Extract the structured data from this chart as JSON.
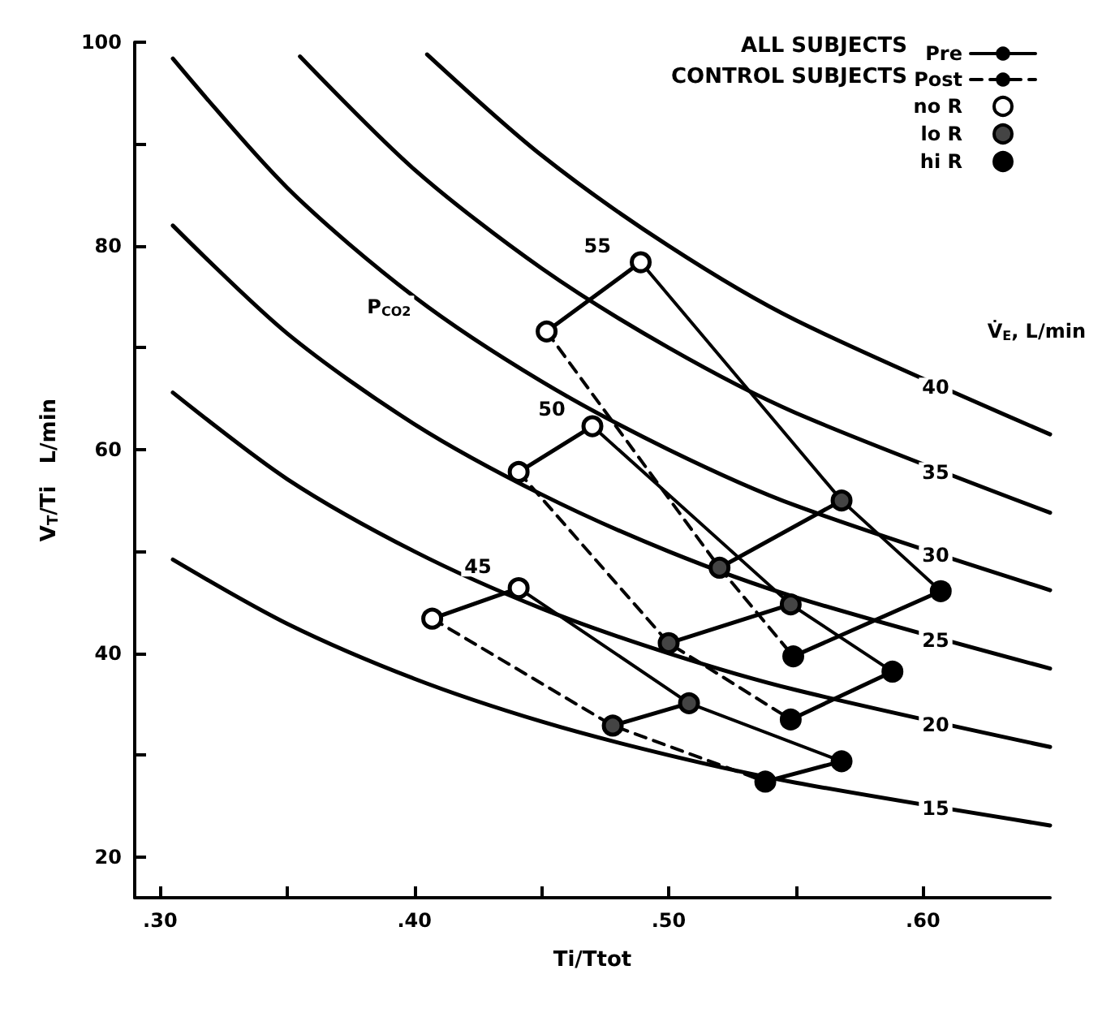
{
  "chart_data": {
    "type": "line",
    "xlabel": "Ti/Ttot",
    "ylabel": "V$_{T}$/Ti   L/min",
    "xlim": [
      0.29,
      0.65
    ],
    "ylim": [
      16,
      100
    ],
    "xticks": [
      {
        "value": 0.3,
        "label": ".30"
      },
      {
        "value": 0.35,
        "label": null
      },
      {
        "value": 0.4,
        "label": ".40"
      },
      {
        "value": 0.45,
        "label": null
      },
      {
        "value": 0.5,
        "label": ".50"
      },
      {
        "value": 0.55,
        "label": null
      },
      {
        "value": 0.6,
        "label": ".60"
      }
    ],
    "yticks": [
      20,
      {
        "value": 30,
        "label": null
      },
      40,
      {
        "value": 50,
        "label": null
      },
      60,
      {
        "value": 70,
        "label": null
      },
      80,
      {
        "value": 90,
        "label": null
      },
      100
    ],
    "grid": false,
    "legend": "top right",
    "series": [
      {
        "color": "#000000",
        "line_style": "solid",
        "x": [
          0.305,
          0.35,
          0.4,
          0.45,
          0.5,
          0.55,
          0.65
        ],
        "values": [
          49.2,
          42.9,
          37.5,
          33.3,
          30.0,
          27.3,
          23.1
        ]
      },
      {
        "color": "#000000",
        "line_style": "solid",
        "x": [
          0.305,
          0.35,
          0.4,
          0.45,
          0.5,
          0.55,
          0.65
        ],
        "values": [
          65.6,
          57.1,
          50.0,
          44.4,
          40.0,
          36.4,
          30.8
        ]
      },
      {
        "color": "#000000",
        "line_style": "solid",
        "x": [
          0.305,
          0.35,
          0.4,
          0.45,
          0.5,
          0.55,
          0.65
        ],
        "values": [
          82.0,
          71.4,
          62.5,
          55.6,
          50.0,
          45.5,
          38.5
        ]
      },
      {
        "color": "#000000",
        "line_style": "solid",
        "x": [
          0.305,
          0.35,
          0.4,
          0.45,
          0.5,
          0.55,
          0.65
        ],
        "values": [
          98.4,
          85.7,
          75.0,
          66.7,
          60.0,
          54.5,
          46.2
        ]
      },
      {
        "color": "#000000",
        "line_style": "solid",
        "x": [
          0.355,
          0.4,
          0.45,
          0.5,
          0.55,
          0.65
        ],
        "values": [
          98.6,
          87.5,
          77.8,
          70.0,
          63.6,
          53.8
        ]
      },
      {
        "color": "#000000",
        "line_style": "solid",
        "x": [
          0.405,
          0.45,
          0.5,
          0.55,
          0.65
        ],
        "values": [
          98.8,
          88.9,
          80.0,
          72.7,
          61.5
        ]
      },
      {
        "color": "#000000",
        "line_style": "solid",
        "x": [
          0.489,
          0.452
        ],
        "values": [
          78.4,
          71.6
        ]
      },
      {
        "color": "#000000",
        "line_style": "solid",
        "x": [
          0.568,
          0.52
        ],
        "values": [
          55.0,
          48.4
        ]
      },
      {
        "color": "#000000",
        "line_style": "solid",
        "x": [
          0.607,
          0.549
        ],
        "values": [
          46.1,
          39.7
        ]
      },
      {
        "color": "#000000",
        "line_style": "solid",
        "x": [
          0.47,
          0.441
        ],
        "values": [
          62.3,
          57.8
        ]
      },
      {
        "color": "#000000",
        "line_style": "solid",
        "x": [
          0.548,
          0.5
        ],
        "values": [
          44.8,
          41.0
        ]
      },
      {
        "color": "#000000",
        "line_style": "solid",
        "x": [
          0.588,
          0.548
        ],
        "values": [
          38.2,
          33.5
        ]
      },
      {
        "color": "#000000",
        "line_style": "solid",
        "x": [
          0.441,
          0.407
        ],
        "values": [
          46.4,
          43.4
        ]
      },
      {
        "color": "#000000",
        "line_style": "solid",
        "x": [
          0.508,
          0.478
        ],
        "values": [
          35.1,
          32.9
        ]
      },
      {
        "color": "#000000",
        "line_style": "solid",
        "x": [
          0.568,
          0.538
        ],
        "values": [
          29.4,
          27.4
        ]
      },
      {
        "name": "Pre",
        "color": "#000000",
        "line_style": "solid",
        "x": [
          0.489,
          0.568,
          0.607,
          null,
          0.47,
          0.548,
          0.588,
          null,
          0.441,
          0.508,
          0.568
        ],
        "values": [
          78.4,
          55.0,
          46.1,
          null,
          62.3,
          44.8,
          38.2,
          null,
          46.4,
          35.1,
          29.4
        ]
      },
      {
        "name": "Post",
        "color": "#000000",
        "line_style": "dashed",
        "x": [
          0.452,
          0.52,
          0.549,
          null,
          0.441,
          0.5,
          0.548,
          null,
          0.407,
          0.478,
          0.538
        ],
        "values": [
          71.6,
          48.4,
          39.7,
          null,
          57.8,
          41.0,
          33.5,
          null,
          43.4,
          32.9,
          27.4
        ]
      },
      {
        "name": "no R",
        "type": "scatter",
        "color": "#ffffff",
        "marker": "circle",
        "x": [
          0.489,
          0.452,
          0.47,
          0.441,
          0.441,
          0.407
        ],
        "values": [
          78.4,
          71.6,
          62.3,
          57.8,
          46.4,
          43.4
        ]
      },
      {
        "name": "lo R",
        "type": "scatter",
        "color": "#444444",
        "marker": "circle",
        "x": [
          0.568,
          0.52,
          0.548,
          0.5,
          0.508,
          0.478
        ],
        "values": [
          55.0,
          48.4,
          44.8,
          41.0,
          35.1,
          32.9
        ]
      },
      {
        "name": "hi R",
        "type": "scatter",
        "color": "#000000",
        "marker": "circle",
        "x": [
          0.607,
          0.549,
          0.588,
          0.548,
          0.568,
          0.538
        ],
        "values": [
          46.1,
          39.7,
          38.2,
          33.5,
          29.4,
          27.4
        ]
      }
    ],
    "annotations": [
      "ALL SUBJECTS",
      "CONTROL SUBJECTS",
      {
        "text": "15",
        "x": 0.605,
        "y": 24.8
      },
      {
        "text": "20",
        "x": 0.605,
        "y": 33.0
      },
      {
        "text": "25",
        "x": 0.605,
        "y": 41.3
      },
      {
        "text": "30",
        "x": 0.605,
        "y": 49.6
      },
      {
        "text": "35",
        "x": 0.605,
        "y": 57.8
      },
      {
        "text": "40",
        "x": 0.605,
        "y": 66.1
      },
      "V̇$_{E}$, L/min",
      {
        "text": "P$_{CO2}$",
        "x": 0.39,
        "y": 74
      },
      {
        "text": "45",
        "x": 0.425,
        "y": 48.5
      },
      {
        "text": "50",
        "x": 0.454,
        "y": 64
      },
      {
        "text": "55",
        "x": 0.472,
        "y": 80
      }
    ]
  }
}
